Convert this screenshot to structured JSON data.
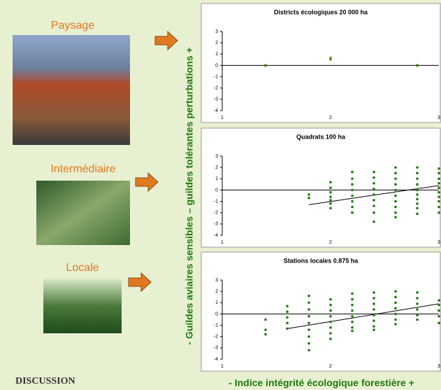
{
  "slide": {
    "label_1": "Paysage",
    "label_2": "Intermédiaire",
    "label_3": "Locale",
    "footer": "DISCUSSION",
    "y_axis_label": "- Guildes aviaires sensibles – guildes tolérantes perturbations +",
    "x_axis_label": "- Indice intégrité écologique forestière +"
  },
  "chart_data": [
    {
      "type": "scatter",
      "title": "Districts écologiques 20 000 ha",
      "color": "#2f8a1f",
      "error_color": "#a08a10",
      "xlim": [
        1,
        3
      ],
      "ylim": [
        -4,
        3
      ],
      "xticks": [
        1,
        2,
        3
      ],
      "yticks": [
        -4,
        -3,
        -2,
        -1,
        0,
        1,
        2,
        3
      ],
      "x": [
        1.4,
        2.0,
        2.8
      ],
      "values": [
        0,
        0.6,
        0
      ],
      "errors": [
        0.08,
        0.15,
        0.08
      ]
    },
    {
      "type": "scatter",
      "title": "Quadrats 100 ha",
      "color": "#1f7a10",
      "xlim": [
        1,
        3
      ],
      "ylim": [
        -4,
        3
      ],
      "xticks": [
        1,
        2,
        3
      ],
      "yticks": [
        -4,
        -3,
        -2,
        -1,
        0,
        1,
        2,
        3
      ],
      "x": [
        1.8,
        1.8,
        2,
        2,
        2,
        2,
        2,
        2,
        2,
        2.2,
        2.2,
        2.2,
        2.2,
        2.2,
        2.2,
        2.2,
        2.2,
        2.4,
        2.4,
        2.4,
        2.4,
        2.4,
        2.4,
        2.4,
        2.4,
        2.4,
        2.6,
        2.6,
        2.6,
        2.6,
        2.6,
        2.6,
        2.6,
        2.6,
        2.6,
        2.6,
        2.8,
        2.8,
        2.8,
        2.8,
        2.8,
        2.8,
        2.8,
        2.8,
        2.8,
        2.8,
        3,
        3,
        3,
        3,
        3,
        3,
        3,
        3,
        3,
        3
      ],
      "values": [
        -0.4,
        -0.7,
        0.7,
        0.2,
        -0.2,
        -0.6,
        -0.9,
        -1.2,
        -1.6,
        1.6,
        1.0,
        0.5,
        0,
        -0.5,
        -1,
        -1.5,
        -2.0,
        1.6,
        1.1,
        0.6,
        0.1,
        -0.4,
        -0.9,
        -1.4,
        -2.0,
        -2.8,
        2.0,
        1.5,
        1.0,
        0.5,
        0,
        -0.5,
        -1,
        -1.5,
        -2.0,
        -2.4,
        2.0,
        1.5,
        1.0,
        0.5,
        0,
        -0.4,
        -0.8,
        -1.2,
        -1.6,
        -2.1,
        1.9,
        1.5,
        1.0,
        0.6,
        0.2,
        -0.2,
        -0.6,
        -1.0,
        -1.5,
        -2.0
      ],
      "trend": {
        "x": [
          1.8,
          3.0
        ],
        "values": [
          -1.3,
          0.4
        ]
      }
    },
    {
      "type": "scatter",
      "title": "Stations locales 0.875 ha",
      "color": "#1f7a10",
      "xlim": [
        1,
        3
      ],
      "ylim": [
        -4,
        3
      ],
      "xticks": [
        1,
        2,
        3
      ],
      "yticks": [
        -4,
        -3,
        -2,
        -1,
        0,
        1,
        2,
        3
      ],
      "x": [
        1.4,
        1.4,
        1.4,
        1.6,
        1.6,
        1.6,
        1.6,
        1.6,
        1.8,
        1.8,
        1.8,
        1.8,
        1.8,
        1.8,
        1.8,
        1.8,
        1.8,
        2,
        2,
        2,
        2,
        2,
        2,
        2,
        2,
        2.2,
        2.2,
        2.2,
        2.2,
        2.2,
        2.2,
        2.2,
        2.2,
        2.4,
        2.4,
        2.4,
        2.4,
        2.4,
        2.4,
        2.4,
        2.4,
        2.6,
        2.6,
        2.6,
        2.6,
        2.6,
        2.6,
        2.6,
        2.8,
        2.8,
        2.8,
        2.8,
        2.8,
        2.8,
        3,
        3,
        3,
        3,
        3
      ],
      "values": [
        -0.5,
        -1.4,
        -1.8,
        0.7,
        0.2,
        -0.3,
        -0.8,
        -1.3,
        1.6,
        1.0,
        0.4,
        -0.2,
        -0.8,
        -1.4,
        -2.0,
        -2.6,
        -3.2,
        1.3,
        0.8,
        0.3,
        -0.2,
        -0.7,
        -1.2,
        -1.7,
        -2.2,
        1.8,
        1.3,
        0.8,
        0.3,
        -0.2,
        -0.7,
        -1.2,
        -1.5,
        1.9,
        1.4,
        0.9,
        0.4,
        -0.1,
        -0.6,
        -1.1,
        -1.4,
        2.0,
        1.5,
        1.0,
        0.5,
        0,
        -0.5,
        -0.9,
        1.9,
        1.4,
        0.9,
        0.4,
        -0.1,
        -0.5,
        1.2,
        0.8,
        0.3,
        -0.2,
        -0.8
      ],
      "trend": {
        "x": [
          1.6,
          3.0
        ],
        "values": [
          -1.3,
          0.9
        ]
      }
    }
  ]
}
